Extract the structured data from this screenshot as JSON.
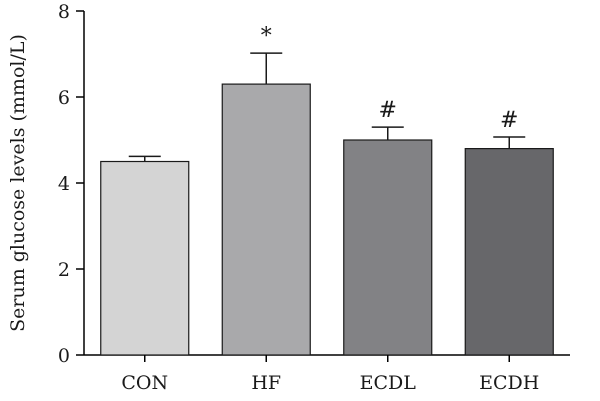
{
  "chart_data": {
    "type": "bar",
    "ylabel": "Serum glucose levels (mmol/L)",
    "xlabel": "",
    "ylim": [
      0,
      8
    ],
    "yticks": [
      "0",
      "2",
      "4",
      "6",
      "8"
    ],
    "categories": [
      "CON",
      "HF",
      "ECDL",
      "ECDH"
    ],
    "values": [
      4.5,
      6.3,
      5.0,
      4.8
    ],
    "errors": [
      0.12,
      0.72,
      0.3,
      0.27
    ],
    "annotations": [
      "",
      "*",
      "#",
      "#"
    ],
    "colors": [
      "#d4d4d4",
      "#a9a9ab",
      "#828285",
      "#67676a"
    ],
    "grid": false,
    "legend": "none"
  }
}
